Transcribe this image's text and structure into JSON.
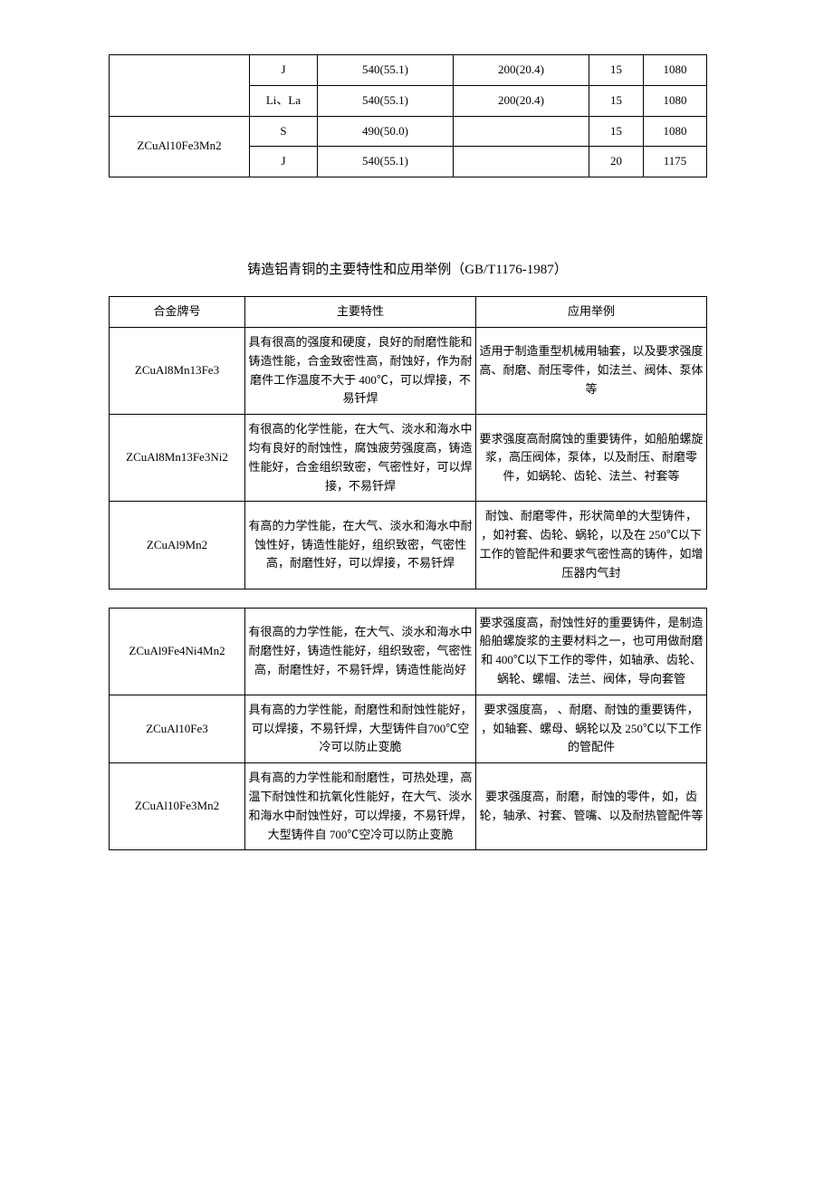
{
  "table1": {
    "rows": [
      {
        "alloy": "",
        "col2": "J",
        "col3": "540(55.1)",
        "col4": "200(20.4)",
        "col5": "15",
        "col6": "1080"
      },
      {
        "alloy": "",
        "col2": "Li、La",
        "col3": "540(55.1)",
        "col4": "200(20.4)",
        "col5": "15",
        "col6": "1080"
      },
      {
        "alloy": "ZCuAl10Fe3Mn2",
        "col2": "S",
        "col3": "490(50.0)",
        "col4": "",
        "col5": "15",
        "col6": "1080"
      },
      {
        "alloy": "",
        "col2": "J",
        "col3": "540(55.1)",
        "col4": "",
        "col5": "20",
        "col6": "1175"
      }
    ]
  },
  "section_title": "铸造铝青铜的主要特性和应用举例（GB/T1176-1987）",
  "table2": {
    "headers": {
      "c1": "合金牌号",
      "c2": "主要特性",
      "c3": "应用举例"
    },
    "rows": [
      {
        "alloy": "ZCuAl8Mn13Fe3",
        "feature": "具有很高的强度和硬度，良好的耐磨性能和铸造性能，合金致密性高，耐蚀好，作为耐磨件工作温度不大于 400℃，可以焊接，不易钎焊",
        "app": "适用于制造重型机械用轴套，以及要求强度高、耐磨、耐压零件，如法兰、阀体、泵体等"
      },
      {
        "alloy": "ZCuAl8Mn13Fe3Ni2",
        "feature": "有很高的化学性能，在大气、淡水和海水中均有良好的耐蚀性，腐蚀疲劳强度高，铸造性能好，合金组织致密，气密性好，可以焊接，不易钎焊",
        "app": "要求强度高耐腐蚀的重要铸件，如船舶螺旋浆，高压阀体，泵体，以及耐压、耐磨零件，如蜗轮、齿轮、法兰、衬套等"
      },
      {
        "alloy": "ZCuAl9Mn2",
        "feature": "有高的力学性能，在大气、淡水和海水中耐蚀性好，铸造性能好，组织致密，气密性高，耐磨性好，可以焊接，不易钎焊",
        "app": "耐蚀、耐磨零件，形状简单的大型铸件， ，如衬套、齿轮、蜗轮，以及在 250℃以下工作的管配件和要求气密性高的铸件，如增压器内气封"
      }
    ]
  },
  "table3": {
    "rows": [
      {
        "alloy": "ZCuAl9Fe4Ni4Mn2",
        "feature": "有很高的力学性能，在大气、淡水和海水中耐磨性好，铸造性能好，组织致密，气密性高，耐磨性好，不易钎焊，铸造性能尚好",
        "app": "要求强度高，耐蚀性好的重要铸件，是制造船舶螺旋浆的主要材料之一，也可用做耐磨和 400℃以下工作的零件，如轴承、齿轮、蜗轮、螺帽、法兰、阀体，导向套管"
      },
      {
        "alloy": "ZCuAl10Fe3",
        "feature": "具有高的力学性能，耐磨性和耐蚀性能好，可以焊接，不易钎焊，大型铸件自700℃空冷可以防止变脆",
        "app": "要求强度高， 、耐磨、耐蚀的重要铸件， ，如轴套、螺母、蜗轮以及 250℃以下工作的管配件"
      },
      {
        "alloy": "ZCuAl10Fe3Mn2",
        "feature": "具有高的力学性能和耐磨性，可热处理，高温下耐蚀性和抗氧化性能好，在大气、淡水和海水中耐蚀性好，可以焊接，不易钎焊，大型铸件自 700℃空冷可以防止变脆",
        "app": "要求强度高，耐磨，耐蚀的零件，如，齿轮，轴承、衬套、管嘴、以及耐热管配件等"
      }
    ]
  }
}
